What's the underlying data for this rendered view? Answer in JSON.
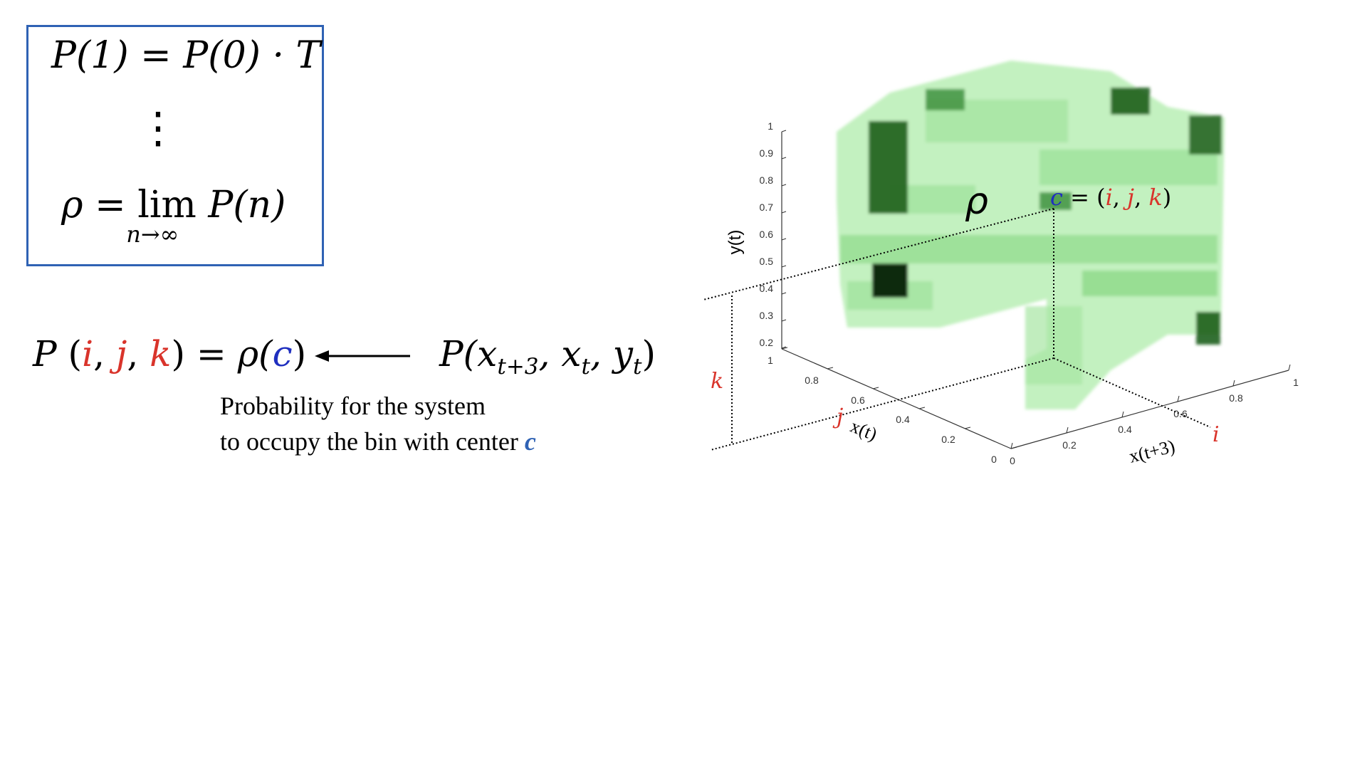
{
  "equations": {
    "line1": {
      "lhs": "P(1)",
      "eq": " = ",
      "rhs": "P(0) · T"
    },
    "dots": "⋮",
    "line3": {
      "rho": "ρ",
      "eq": " = ",
      "lim": "lim",
      "lim_sub": "n→∞",
      "rhs": "P(n)"
    }
  },
  "mapping": {
    "lhs_P": "P",
    "i": "i",
    "j": "j",
    "k": "k",
    "rhs": "ρ(",
    "c": "c",
    "close": ")",
    "joint_P": "P(x",
    "sub1": "t+3",
    "mid1": ", x",
    "sub2": "t",
    "mid2": ", y",
    "sub3": "t",
    "end": ")"
  },
  "caption": {
    "line1": "Probability for the system",
    "line2_prefix": "to occupy the bin with center ",
    "line2_symbol": "c"
  },
  "plot": {
    "z_axis_label": "y(t)",
    "x_axis_label": "x(t+3)",
    "y_axis_label": "x(t)",
    "rho_label": "ρ",
    "bin_label": {
      "c": "c",
      "eq": " = (",
      "i": "i",
      "comma1": ", ",
      "j": "j",
      "comma2": ", ",
      "k": "k",
      "close": ")"
    },
    "index_labels": {
      "i": "i",
      "j": "j",
      "k": "k"
    },
    "z_ticks": [
      "1",
      "0.9",
      "0.8",
      "0.7",
      "0.6",
      "0.5",
      "0.4",
      "0.3",
      "0.2"
    ],
    "y_ticks": [
      "1",
      "0.8",
      "0.6",
      "0.4",
      "0.2",
      "0"
    ],
    "x_ticks": [
      "0",
      "0.2",
      "0.4",
      "0.6",
      "0.8",
      "1"
    ],
    "colors": {
      "light": "#9fe39a",
      "mid": "#58c457",
      "dark": "#1e5f1c",
      "darkest": "#0b2a0b"
    }
  }
}
